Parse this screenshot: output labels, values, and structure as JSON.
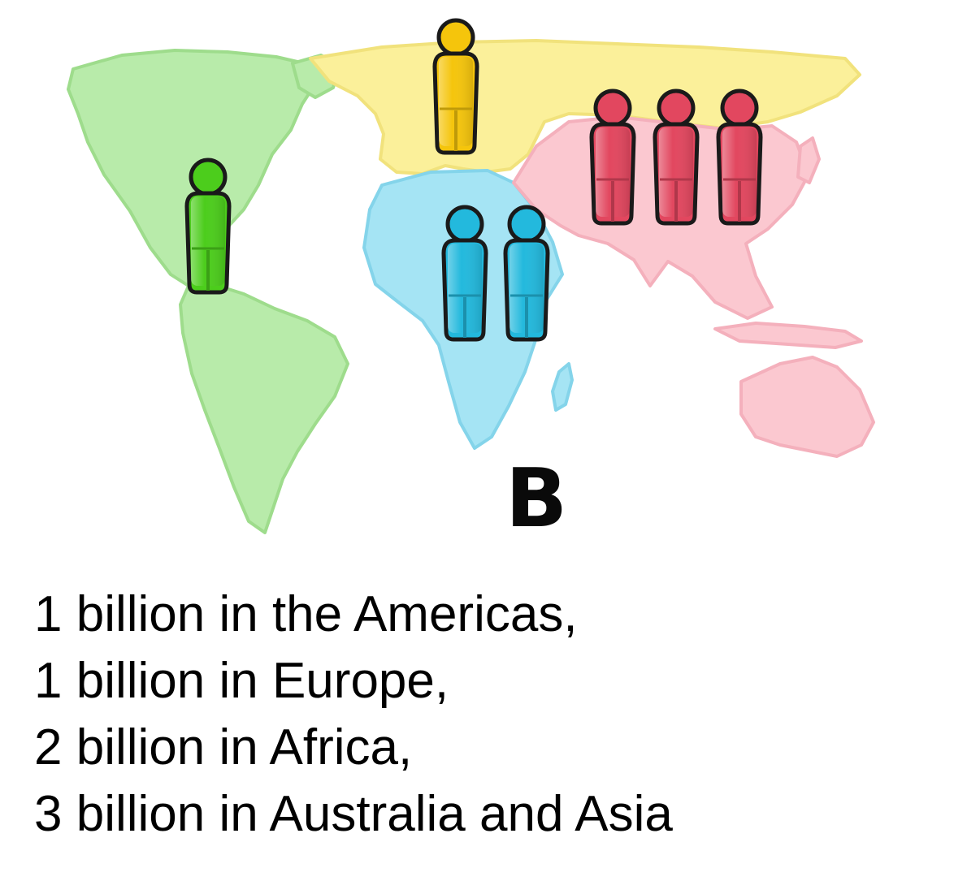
{
  "figure": {
    "label": "B",
    "regions": [
      {
        "id": "americas",
        "color": "#b8ebaa",
        "stroke": "#9edc8c",
        "figures": 1,
        "figure_color": "#4ccd1c"
      },
      {
        "id": "europe",
        "color": "#fbf09a",
        "stroke": "#f1e27c",
        "figures": 1,
        "figure_color": "#f5c50c"
      },
      {
        "id": "africa",
        "color": "#a5e4f4",
        "stroke": "#84d4ea",
        "figures": 2,
        "figure_color": "#23b9dd"
      },
      {
        "id": "asia-australia",
        "color": "#fbc8d0",
        "stroke": "#f4b0bc",
        "figures": 3,
        "figure_color": "#e2475f"
      }
    ]
  },
  "caption": [
    "1 billion in the Americas,",
    "1 billion in Europe,",
    "2 billion in Africa,",
    "3 billion in Australia and Asia"
  ]
}
